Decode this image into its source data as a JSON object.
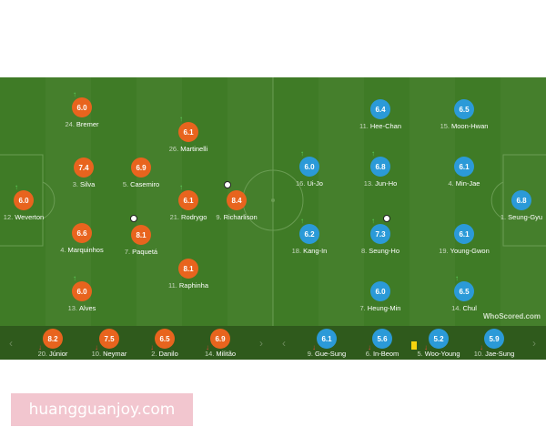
{
  "home": [
    {
      "number": "24.",
      "name": "Bremer",
      "rating": "6.0"
    },
    {
      "number": "26.",
      "name": "Martinelli",
      "rating": "6.1"
    },
    {
      "number": "3.",
      "name": "Silva",
      "rating": "7.4"
    },
    {
      "number": "5.",
      "name": "Casemiro",
      "rating": "6.9"
    },
    {
      "number": "12.",
      "name": "Weverton",
      "rating": "6.0"
    },
    {
      "number": "21.",
      "name": "Rodrygo",
      "rating": "6.1"
    },
    {
      "number": "9.",
      "name": "Richarlison",
      "rating": "8.4"
    },
    {
      "number": "4.",
      "name": "Marquinhos",
      "rating": "6.6"
    },
    {
      "number": "7.",
      "name": "Paquetá",
      "rating": "8.1"
    },
    {
      "number": "11.",
      "name": "Raphinha",
      "rating": "8.1"
    },
    {
      "number": "13.",
      "name": "Alves",
      "rating": "6.0"
    }
  ],
  "away": [
    {
      "number": "11.",
      "name": "Hee-Chan",
      "rating": "6.4"
    },
    {
      "number": "15.",
      "name": "Moon-Hwan",
      "rating": "6.5"
    },
    {
      "number": "16.",
      "name": "Ui-Jo",
      "rating": "6.0"
    },
    {
      "number": "13.",
      "name": "Jun-Ho",
      "rating": "6.8"
    },
    {
      "number": "4.",
      "name": "Min-Jae",
      "rating": "6.1"
    },
    {
      "number": "1.",
      "name": "Seung-Gyu",
      "rating": "6.8"
    },
    {
      "number": "18.",
      "name": "Kang-In",
      "rating": "6.2"
    },
    {
      "number": "8.",
      "name": "Seung-Ho",
      "rating": "7.3"
    },
    {
      "number": "19.",
      "name": "Young-Gwon",
      "rating": "6.1"
    },
    {
      "number": "7.",
      "name": "Heung-Min",
      "rating": "6.0"
    },
    {
      "number": "14.",
      "name": "Chul",
      "rating": "6.5"
    }
  ],
  "home_subs": [
    {
      "number": "20.",
      "name": "Júnior",
      "rating": "8.2"
    },
    {
      "number": "10.",
      "name": "Neymar",
      "rating": "7.5"
    },
    {
      "number": "2.",
      "name": "Danilo",
      "rating": "6.5"
    },
    {
      "number": "14.",
      "name": "Militão",
      "rating": "6.9"
    }
  ],
  "away_subs": [
    {
      "number": "9.",
      "name": "Gue-Sung",
      "rating": "6.1"
    },
    {
      "number": "6.",
      "name": "In-Beom",
      "rating": "5.6"
    },
    {
      "number": "5.",
      "name": "Woo-Young",
      "rating": "5.2"
    },
    {
      "number": "10.",
      "name": "Jae-Sung",
      "rating": "5.9"
    }
  ],
  "brand": "WhoScored.com",
  "watermark": "huangguanjoy.com"
}
